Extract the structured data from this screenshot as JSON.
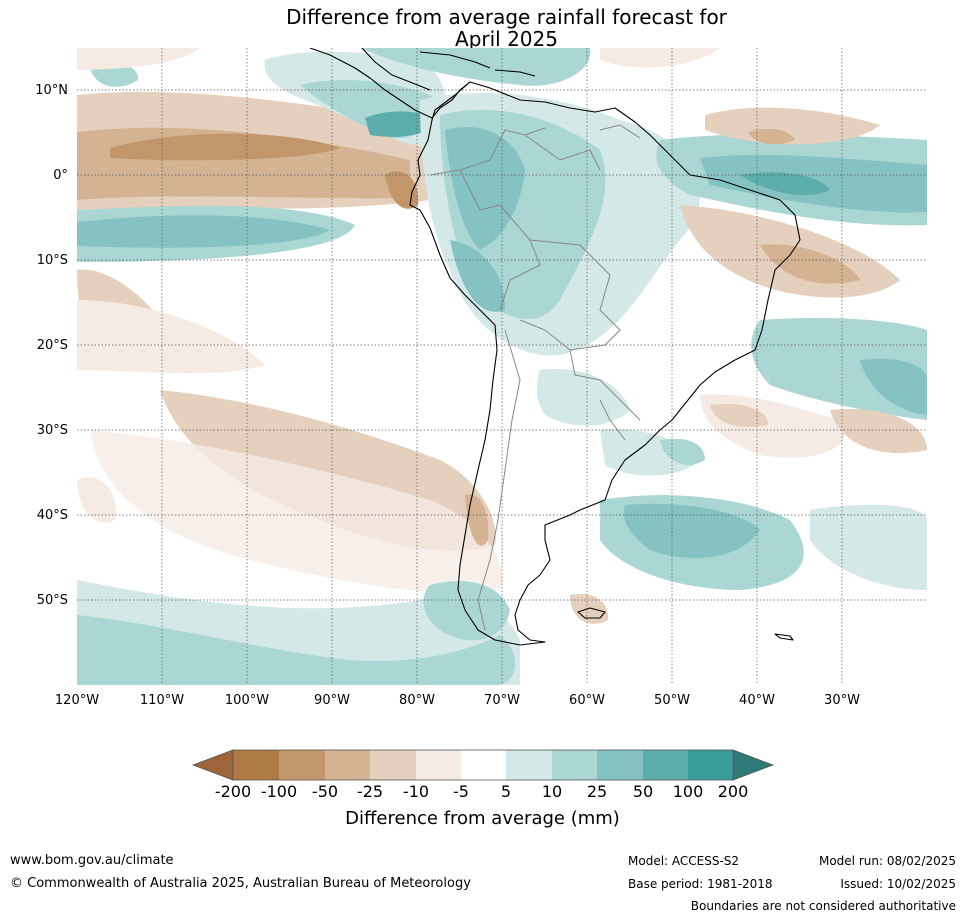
{
  "title_line1": "Difference from average rainfall forecast for",
  "title_line2": "April 2025",
  "lat_labels": [
    "10°N",
    "0°",
    "10°S",
    "20°S",
    "30°S",
    "40°S",
    "50°S"
  ],
  "lon_labels": [
    "120°W",
    "110°W",
    "100°W",
    "90°W",
    "80°W",
    "70°W",
    "60°W",
    "50°W",
    "40°W",
    "30°W"
  ],
  "colorbar": {
    "ticks": [
      "-200",
      "-100",
      "-50",
      "-25",
      "-10",
      "-5",
      "5",
      "10",
      "25",
      "50",
      "100",
      "200"
    ],
    "label": "Difference from average (mm)",
    "colors": [
      "#a0643a",
      "#b07a46",
      "#c3956a",
      "#d4b392",
      "#e5d0bd",
      "#f5ebe4",
      "#ffffff",
      "#d4e9e7",
      "#aad6d4",
      "#84c3c1",
      "#5daeab",
      "#389c99",
      "#2e7a78"
    ]
  },
  "footer": {
    "website": "www.bom.gov.au/climate",
    "copyright": "© Commonwealth of Australia 2025, Australian Bureau of Meteorology",
    "model": "Model: ACCESS-S2",
    "base_period": "Base period: 1981-2018",
    "model_run": "Model run: 08/02/2025",
    "issued": "Issued: 10/02/2025",
    "boundaries_note": "Boundaries are not considered authoritative"
  }
}
